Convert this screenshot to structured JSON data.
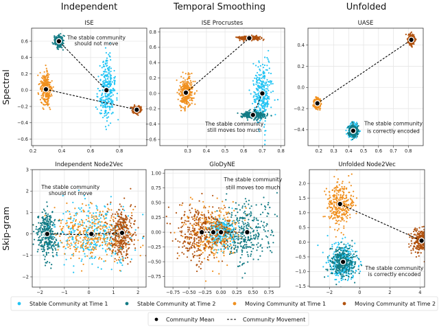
{
  "figure": {
    "column_titles": [
      "Independent",
      "Temporal Smoothing",
      "Unfolded"
    ],
    "row_labels": [
      "Spectral",
      "Skip-gram"
    ]
  },
  "colors": {
    "stable_t1": "#22c4f4",
    "stable_t2": "#137b85",
    "moving_t1": "#f0901f",
    "moving_t2": "#b1520f",
    "mean": "#000000",
    "movement": "#000000"
  },
  "legend": {
    "series": [
      "Stable Community at Time 1",
      "Stable Community at Time 2",
      "Moving Community at Time 1",
      "Moving Community at Time 2"
    ],
    "extra": [
      "Community Mean",
      "Community Movement"
    ]
  },
  "chart_data": [
    {
      "type": "scatter",
      "title": "ISE",
      "xlim": [
        0.19,
        0.99
      ],
      "ylim": [
        -0.68,
        0.76
      ],
      "grid": true,
      "xticks": [
        "0.2",
        "0.4",
        "0.6",
        "0.8"
      ],
      "yticks": [
        "−0.6",
        "−0.4",
        "−0.2",
        "0.0",
        "0.2",
        "0.4",
        "0.6"
      ],
      "annotation": [
        "The stable community",
        "should not move"
      ],
      "clusters": {
        "stable_t1": {
          "mean": [
            0.71,
            0.0
          ],
          "sd": [
            0.028,
            0.19
          ]
        },
        "stable_t2": {
          "mean": [
            0.38,
            0.6
          ],
          "sd": [
            0.014,
            0.035
          ]
        },
        "moving_t1": {
          "mean": [
            0.29,
            0.01
          ],
          "sd": [
            0.018,
            0.1
          ]
        },
        "moving_t2": {
          "mean": [
            0.92,
            -0.24
          ],
          "sd": [
            0.014,
            0.022
          ]
        }
      }
    },
    {
      "type": "scatter",
      "title": "ISE Procrustes",
      "xlim": [
        0.15,
        0.82
      ],
      "ylim": [
        -0.68,
        0.85
      ],
      "grid": true,
      "xticks": [
        "0.3",
        "0.4",
        "0.5",
        "0.6",
        "0.7",
        "0.8"
      ],
      "yticks": [
        "−0.6",
        "−0.4",
        "−0.2",
        "0.0",
        "0.2",
        "0.4",
        "0.6",
        "0.8"
      ],
      "annotation": [
        "The stable community",
        "still moves too much"
      ],
      "clusters": {
        "stable_t1": {
          "mean": [
            0.7,
            0.0
          ],
          "sd": [
            0.024,
            0.19
          ]
        },
        "stable_t2": {
          "mean": [
            0.65,
            -0.28
          ],
          "sd": [
            0.032,
            0.022
          ]
        },
        "moving_t1": {
          "mean": [
            0.29,
            0.01
          ],
          "sd": [
            0.018,
            0.1
          ]
        },
        "moving_t2": {
          "mean": [
            0.63,
            0.72
          ],
          "sd": [
            0.028,
            0.012
          ]
        }
      }
    },
    {
      "type": "scatter",
      "title": "UASE",
      "xlim": [
        0.127,
        0.9
      ],
      "ylim": [
        -0.55,
        0.56
      ],
      "grid": true,
      "xticks": [
        "0.2",
        "0.3",
        "0.4",
        "0.5",
        "0.6",
        "0.7",
        "0.8"
      ],
      "yticks": [
        "−0.4",
        "−0.2",
        "0.0",
        "0.2",
        "0.4"
      ],
      "annotation": [
        "The stable community",
        "is correctly encoded"
      ],
      "clusters": {
        "stable_t1": {
          "mean": [
            0.43,
            -0.41
          ],
          "sd": [
            0.016,
            0.03
          ]
        },
        "stable_t2": {
          "mean": [
            0.43,
            -0.41
          ],
          "sd": [
            0.014,
            0.027
          ]
        },
        "moving_t1": {
          "mean": [
            0.19,
            -0.15
          ],
          "sd": [
            0.011,
            0.022
          ]
        },
        "moving_t2": {
          "mean": [
            0.82,
            0.45
          ],
          "sd": [
            0.011,
            0.022
          ]
        }
      }
    },
    {
      "type": "scatter",
      "title": "Independent Node2Vec",
      "xlim": [
        -2.31,
        2.33
      ],
      "ylim": [
        -2.48,
        3.0
      ],
      "grid": true,
      "xticks": [
        "−2",
        "−1",
        "0",
        "1",
        "2"
      ],
      "yticks": [
        "−2",
        "−1",
        "0",
        "1",
        "2",
        "3"
      ],
      "annotation": [
        "The stable community",
        "should not move"
      ],
      "clusters": {
        "stable_t1": {
          "mean": [
            0.15,
            -0.04
          ],
          "sd": [
            0.8,
            0.7
          ]
        },
        "stable_t2": {
          "mean": [
            -1.7,
            0.0
          ],
          "sd": [
            0.2,
            0.55
          ]
        },
        "moving_t1": {
          "mean": [
            0.1,
            0.0
          ],
          "sd": [
            0.75,
            0.6
          ]
        },
        "moving_t2": {
          "mean": [
            1.35,
            0.05
          ],
          "sd": [
            0.25,
            0.6
          ]
        }
      }
    },
    {
      "type": "scatter",
      "title": "GloDyNE",
      "xlim": [
        -0.88,
        0.92
      ],
      "ylim": [
        -0.93,
        1.06
      ],
      "grid": true,
      "xticks": [
        "−0.75",
        "−0.50",
        "−0.25",
        "0.00",
        "0.25",
        "0.50",
        "0.75"
      ],
      "yticks": [
        "−0.75",
        "−0.50",
        "−0.25",
        "0.00",
        "0.25",
        "0.50",
        "0.75",
        "1.00"
      ],
      "annotation": [
        "The stable community",
        "still moves too much"
      ],
      "clusters": {
        "stable_t1": {
          "mean": [
            0.0,
            0.0
          ],
          "sd": [
            0.1,
            0.12
          ]
        },
        "stable_t2": {
          "mean": [
            0.41,
            0.0
          ],
          "sd": [
            0.2,
            0.25
          ]
        },
        "moving_t1": {
          "mean": [
            -0.12,
            0.0
          ],
          "sd": [
            0.2,
            0.22
          ]
        },
        "moving_t2": {
          "mean": [
            -0.3,
            0.0
          ],
          "sd": [
            0.2,
            0.25
          ]
        }
      }
    },
    {
      "type": "scatter",
      "title": "Unfolded Node2Vec",
      "xlim": [
        -3.33,
        4.3
      ],
      "ylim": [
        -1.53,
        2.47
      ],
      "grid": true,
      "xticks": [
        "−2",
        "0",
        "2",
        "4"
      ],
      "yticks": [
        "−1.5",
        "−1.0",
        "−0.5",
        "0.0",
        "0.5",
        "1.0",
        "1.5",
        "2.0"
      ],
      "annotation": [
        "The stable community",
        "is correctly encoded"
      ],
      "clusters": {
        "stable_t1": {
          "mean": [
            -1.1,
            -0.67
          ],
          "sd": [
            0.45,
            0.3
          ]
        },
        "stable_t2": {
          "mean": [
            -1.1,
            -0.67
          ],
          "sd": [
            0.4,
            0.27
          ]
        },
        "moving_t1": {
          "mean": [
            -1.3,
            1.3
          ],
          "sd": [
            0.45,
            0.35
          ]
        },
        "moving_t2": {
          "mean": [
            4.1,
            0.05
          ],
          "sd": [
            0.33,
            0.2
          ]
        }
      }
    }
  ]
}
